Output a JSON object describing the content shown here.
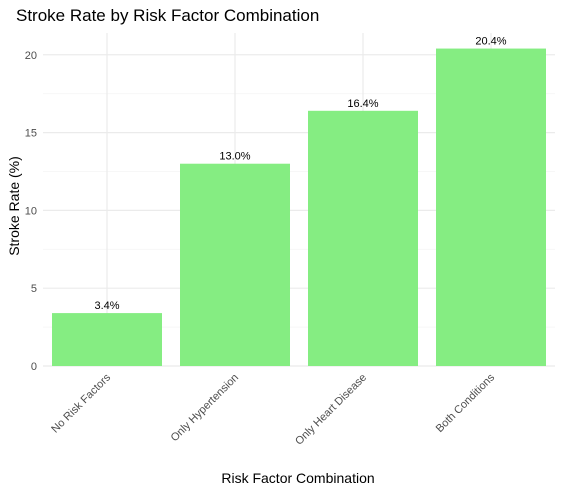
{
  "chart_data": {
    "type": "bar",
    "title": "Stroke Rate by Risk Factor Combination",
    "xlabel": "Risk Factor Combination",
    "ylabel": "Stroke Rate (%)",
    "categories": [
      "No Risk Factors",
      "Only Hypertension",
      "Only Heart Disease",
      "Both Conditions"
    ],
    "values": [
      3.4,
      13.0,
      16.4,
      20.4
    ],
    "data_labels": [
      "3.4%",
      "13.0%",
      "16.4%",
      "20.4%"
    ],
    "ylim": [
      0,
      21.4
    ],
    "y_ticks": [
      0,
      5,
      10,
      15,
      20
    ],
    "y_tick_labels": [
      "0",
      "5",
      "10",
      "15",
      "20"
    ],
    "grid": true,
    "legend": "none",
    "colors": {
      "bar": "#85ED82",
      "grid_major": "#EBEBEB",
      "grid_minor": "#F5F5F5",
      "text": "#000000",
      "tick_text": "#4D4D4D"
    }
  }
}
